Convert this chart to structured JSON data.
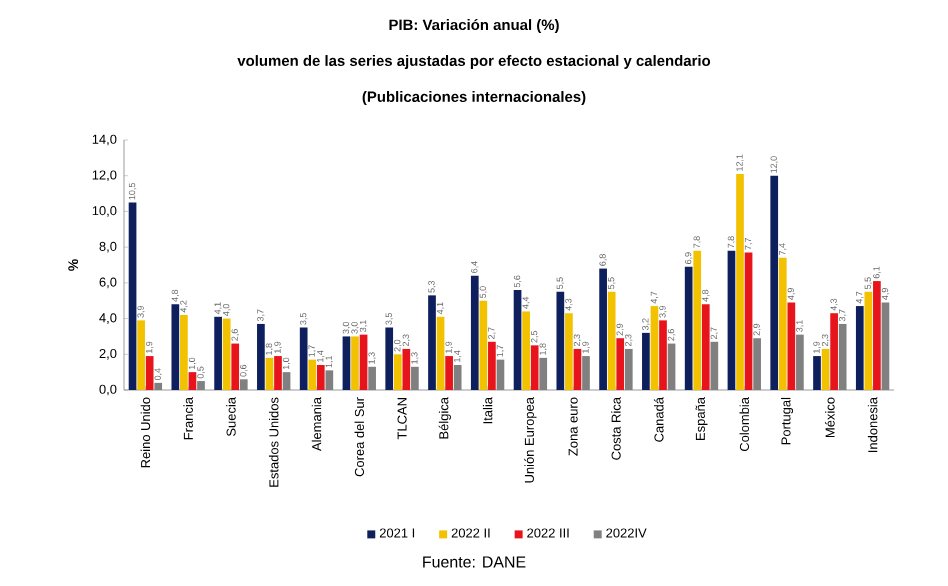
{
  "chart_data": {
    "type": "bar",
    "title": "PIB: Variación anual (%)",
    "subtitle": "volumen de las series ajustadas por efecto estacional y calendario",
    "ylabel": "%",
    "annotations": [
      "(Publicaciones internacionales)",
      "Fuente: DANE"
    ],
    "categories": [
      "Reino Unido",
      "Francia",
      "Suecia",
      "Estados Unidos",
      "Alemania",
      "Corea del Sur",
      "TLCAN",
      "Bélgica",
      "Italia",
      "Unión Europea",
      "Zona euro",
      "Costa Rica",
      "Canadá",
      "España",
      "Colombia",
      "Portugal",
      "México",
      "Indonesia"
    ],
    "series": [
      {
        "name": "2021 I",
        "color": "#0d1f5c",
        "values": [
          10.5,
          4.8,
          4.1,
          3.7,
          3.5,
          3.0,
          3.5,
          5.3,
          6.4,
          5.6,
          5.5,
          6.8,
          3.2,
          6.9,
          7.8,
          12.0,
          1.9,
          4.7
        ],
        "value_labels": [
          "10,5",
          "4,8",
          "4,1",
          "3,7",
          "3,5",
          "3,0",
          "3,5",
          "5,3",
          "6,4",
          "5,6",
          "5,5",
          "6,8",
          "3,2",
          "6,9",
          "7,8",
          "12,0",
          "1,9",
          "4,7"
        ]
      },
      {
        "name": "2022 II",
        "color": "#f2c200",
        "values": [
          3.9,
          4.2,
          4.0,
          1.8,
          1.7,
          3.0,
          2.0,
          4.1,
          5.0,
          4.4,
          4.3,
          5.5,
          4.7,
          7.8,
          12.1,
          7.4,
          2.3,
          5.5
        ],
        "value_labels": [
          "3,9",
          "4,2",
          "4,0",
          "1,8",
          "1,7",
          "3,0",
          "2,0",
          "4,1",
          "5,0",
          "4,4",
          "4,3",
          "5,5",
          "4,7",
          "7,8",
          "12,1",
          "7,4",
          "2,3",
          "5,5"
        ]
      },
      {
        "name": "2022 III",
        "color": "#e8141c",
        "values": [
          1.9,
          1.0,
          2.6,
          1.9,
          1.4,
          3.1,
          2.3,
          1.9,
          2.7,
          2.5,
          2.3,
          2.9,
          3.9,
          4.8,
          7.7,
          4.9,
          4.3,
          6.1
        ],
        "value_labels": [
          "1,9",
          "1,0",
          "2,6",
          "1,9",
          "1,4",
          "3,1",
          "2,3",
          "1,9",
          "2,7",
          "2,5",
          "2,3",
          "2,9",
          "3,9",
          "4,8",
          "7,7",
          "4,9",
          "4,3",
          "6,1"
        ]
      },
      {
        "name": "2022IV",
        "color": "#808080",
        "values": [
          0.4,
          0.5,
          0.6,
          1.0,
          1.1,
          1.3,
          1.3,
          1.4,
          1.7,
          1.8,
          1.9,
          2.3,
          2.6,
          2.7,
          2.9,
          3.1,
          3.7,
          4.9
        ],
        "value_labels": [
          "0,4",
          "0,5",
          "0,6",
          "1,0",
          "1,1",
          "1,3",
          "1,3",
          "1,4",
          "1,7",
          "1,8",
          "1,9",
          "2,3",
          "2,6",
          "2,7",
          "2,9",
          "3,1",
          "3,7",
          "4,9"
        ]
      }
    ],
    "ylim": [
      0,
      14
    ],
    "yticks": [
      {
        "value": 0,
        "label": "0,0"
      },
      {
        "value": 2,
        "label": "2,0"
      },
      {
        "value": 4,
        "label": "4,0"
      },
      {
        "value": 6,
        "label": "6,0"
      },
      {
        "value": 8,
        "label": "8,0"
      },
      {
        "value": 10,
        "label": "10,0"
      },
      {
        "value": 12,
        "label": "12,0"
      },
      {
        "value": 14,
        "label": "14,0"
      }
    ],
    "grid": false,
    "legend": "bottom"
  }
}
